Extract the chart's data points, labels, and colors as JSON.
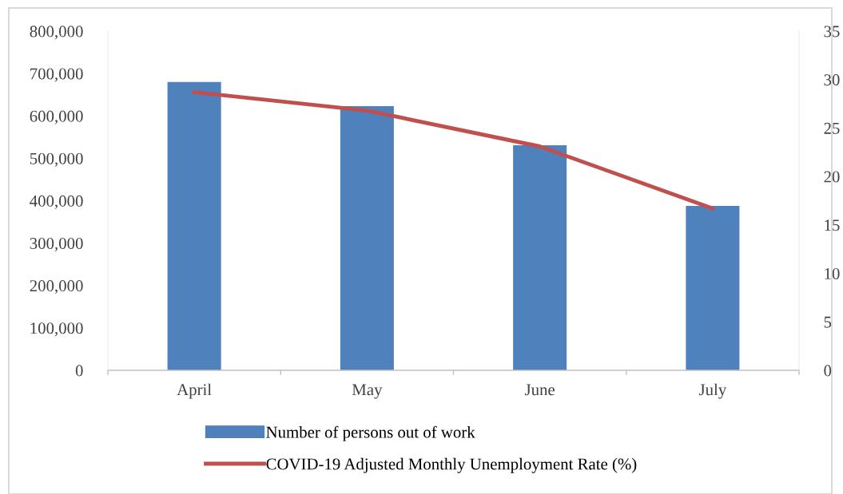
{
  "chart_data": {
    "type": "bar",
    "categories": [
      "April",
      "May",
      "June",
      "July"
    ],
    "series": [
      {
        "name": "Number of persons out of work",
        "color": "#4f81bd",
        "values": [
          680000,
          623000,
          531000,
          388000
        ]
      },
      {
        "name": "COVID-19 Adjusted Monthly Unemployment Rate (%)",
        "type": "line",
        "axis": "y2",
        "color": "#c0504d",
        "values": [
          28.7,
          26.8,
          23.1,
          16.7
        ]
      }
    ],
    "ylim": [
      0,
      800000
    ],
    "yticks": [
      {
        "value": 0,
        "label": "0"
      },
      {
        "value": 100000,
        "label": "100,000"
      },
      {
        "value": 200000,
        "label": "200,000"
      },
      {
        "value": 300000,
        "label": "300,000"
      },
      {
        "value": 400000,
        "label": "400,000"
      },
      {
        "value": 500000,
        "label": "500,000"
      },
      {
        "value": 600000,
        "label": "600,000"
      },
      {
        "value": 700000,
        "label": "700,000"
      },
      {
        "value": 800000,
        "label": "800,000"
      }
    ],
    "y2lim": [
      0,
      35
    ],
    "y2ticks": [
      0,
      5,
      10,
      15,
      20,
      25,
      30,
      35
    ],
    "grid": false,
    "legend": "bottom",
    "marker": "none",
    "line_style": "solid"
  }
}
